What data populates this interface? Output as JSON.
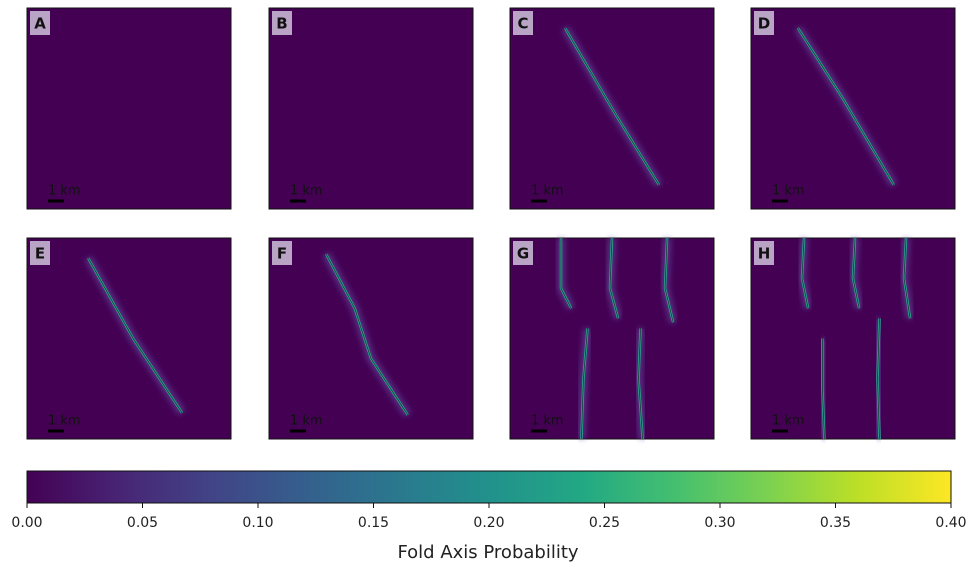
{
  "chart_data": {
    "type": "image-grid",
    "panels": [
      {
        "label": "A"
      },
      {
        "label": "B"
      },
      {
        "label": "C"
      },
      {
        "label": "D"
      },
      {
        "label": "E"
      },
      {
        "label": "F"
      },
      {
        "label": "G"
      },
      {
        "label": "H"
      }
    ],
    "scale_bar": "1 km",
    "colorbar": {
      "colormap": "viridis",
      "clim": [
        0,
        0.4
      ],
      "label": "Fold Axis Probability",
      "ticks": [
        {
          "value": 0,
          "label": "0.00"
        },
        {
          "value": 0.05,
          "label": "0.05"
        },
        {
          "value": 0.1,
          "label": "0.10"
        },
        {
          "value": 0.15,
          "label": "0.15"
        },
        {
          "value": 0.2,
          "label": "0.20"
        },
        {
          "value": 0.25,
          "label": "0.25"
        },
        {
          "value": 0.3,
          "label": "0.30"
        },
        {
          "value": 0.35,
          "label": "0.35"
        },
        {
          "value": 0.4,
          "label": "0.40"
        }
      ]
    }
  }
}
